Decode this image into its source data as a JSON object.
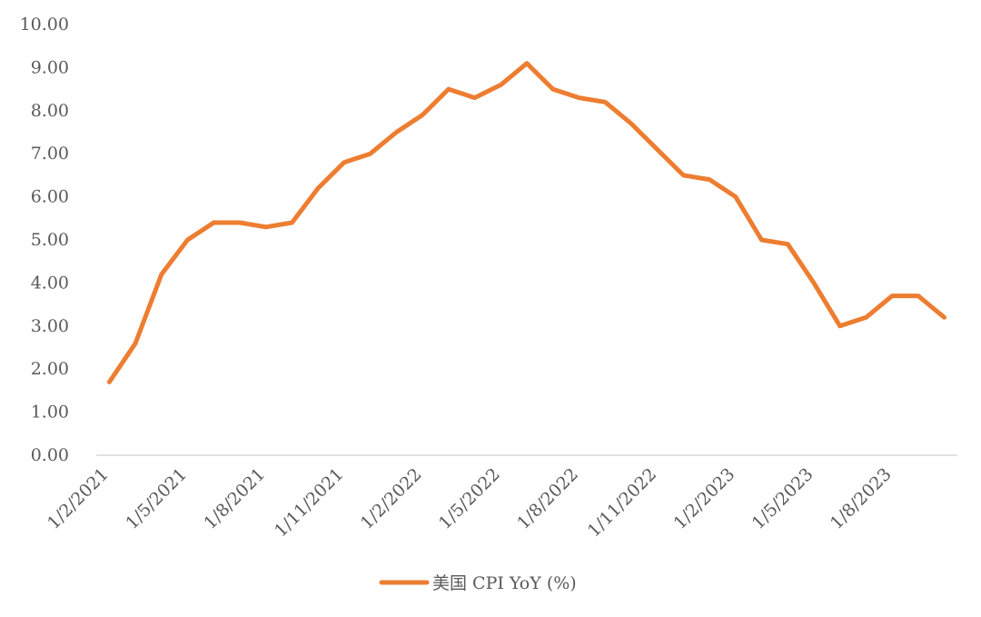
{
  "chart_data": {
    "type": "line",
    "x": [
      "1/2/2021",
      "1/3/2021",
      "1/4/2021",
      "1/5/2021",
      "1/6/2021",
      "1/7/2021",
      "1/8/2021",
      "1/9/2021",
      "1/10/2021",
      "1/11/2021",
      "1/12/2021",
      "1/1/2022",
      "1/2/2022",
      "1/3/2022",
      "1/4/2022",
      "1/5/2022",
      "1/6/2022",
      "1/7/2022",
      "1/8/2022",
      "1/9/2022",
      "1/10/2022",
      "1/11/2022",
      "1/12/2022",
      "1/1/2023",
      "1/2/2023",
      "1/3/2023",
      "1/4/2023",
      "1/5/2023",
      "1/6/2023",
      "1/7/2023",
      "1/8/2023",
      "1/9/2023",
      "1/10/2023"
    ],
    "x_tick_labels": [
      "1/2/2021",
      "1/5/2021",
      "1/8/2021",
      "1/11/2021",
      "1/2/2022",
      "1/5/2022",
      "1/8/2022",
      "1/11/2022",
      "1/2/2023",
      "1/5/2023",
      "1/8/2023"
    ],
    "series": [
      {
        "name": "美国 CPI YoY (%)",
        "color": "#ED7D31",
        "values": [
          1.7,
          2.6,
          4.2,
          5.0,
          5.4,
          5.4,
          5.3,
          5.4,
          6.2,
          6.8,
          7.0,
          7.5,
          7.9,
          8.5,
          8.3,
          8.6,
          9.1,
          8.5,
          8.3,
          8.2,
          7.7,
          7.1,
          6.5,
          6.4,
          6.0,
          5.0,
          4.9,
          4.0,
          3.0,
          3.2,
          3.7,
          3.7,
          3.2
        ]
      }
    ],
    "y_tick_labels": [
      "0.00",
      "1.00",
      "2.00",
      "3.00",
      "4.00",
      "5.00",
      "6.00",
      "7.00",
      "8.00",
      "9.00",
      "10.00"
    ],
    "ylim": [
      0,
      10
    ],
    "grid": false,
    "legend_position": "bottom"
  }
}
